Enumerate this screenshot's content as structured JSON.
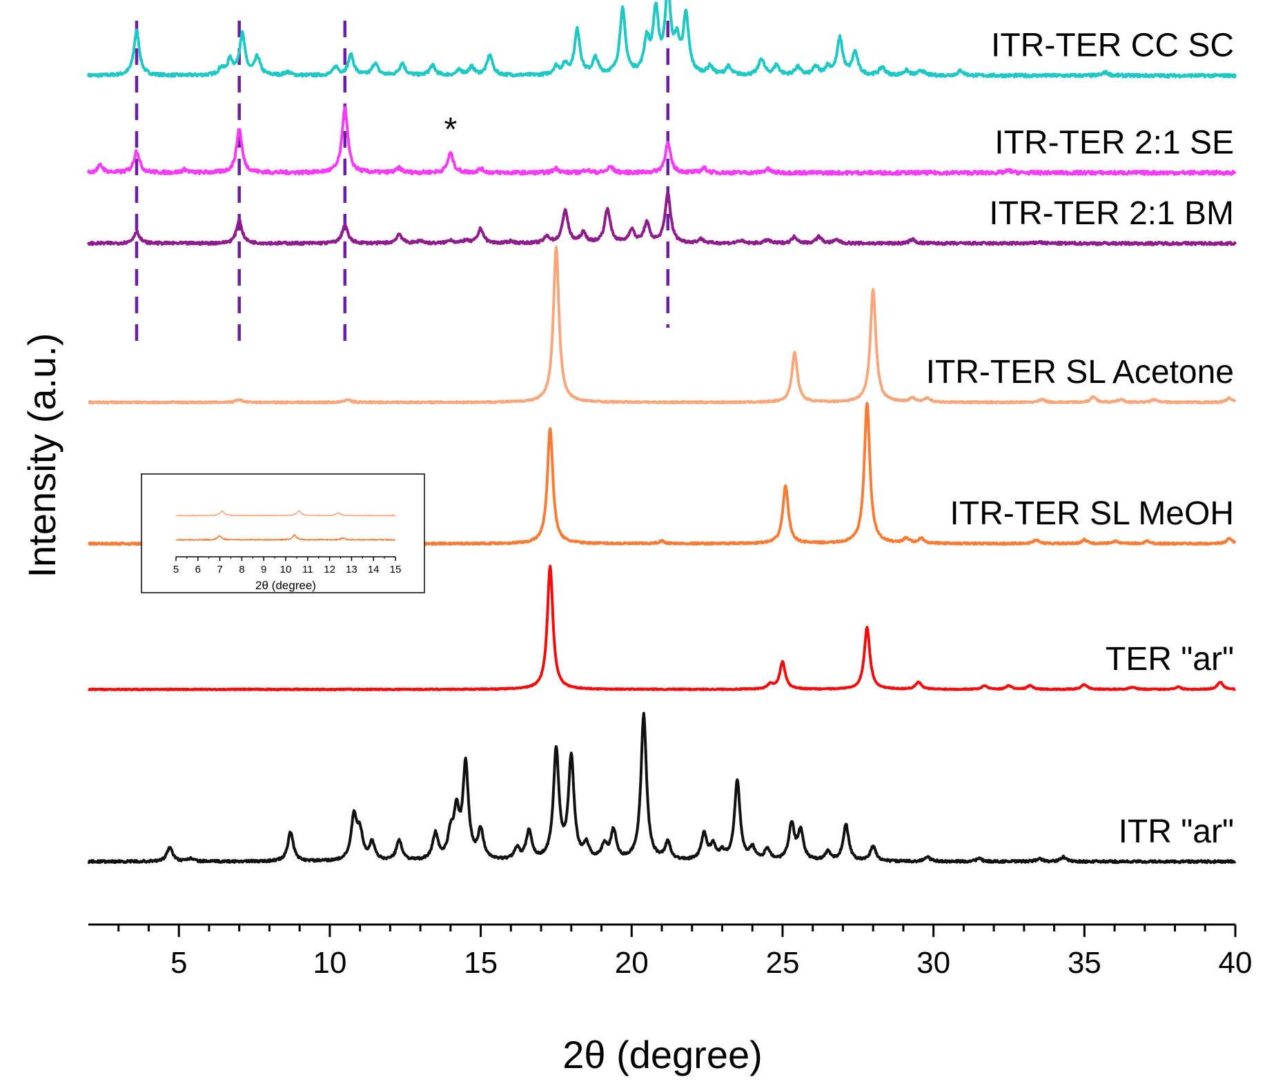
{
  "chart_data": {
    "type": "line",
    "title": "",
    "xlabel": "2θ (degree)",
    "ylabel": "Intensity (a.u.)",
    "xlim": [
      2,
      40
    ],
    "xticks": [
      5,
      10,
      15,
      20,
      25,
      30,
      35,
      40
    ],
    "ylim": [
      0,
      1
    ],
    "grid": false,
    "legend": "inline-right",
    "reference_lines": [
      3.6,
      7.0,
      10.5,
      21.2
    ],
    "annotations": [
      {
        "text": "*",
        "x": 14.0,
        "series": "ITR-TER 2:1 SE"
      }
    ],
    "series": [
      {
        "name": "ITR-TER CC SC",
        "color": "#1fc8c4",
        "baseline": 0.93,
        "scale": 0.092,
        "noise": 0.0035,
        "lw": 4,
        "peaks": [
          [
            3.6,
            0.55
          ],
          [
            6.4,
            0.08
          ],
          [
            6.7,
            0.18
          ],
          [
            7.1,
            0.5
          ],
          [
            7.6,
            0.22
          ],
          [
            8.6,
            0.04
          ],
          [
            10.2,
            0.1
          ],
          [
            10.7,
            0.25
          ],
          [
            11.5,
            0.15
          ],
          [
            12.4,
            0.15
          ],
          [
            13.4,
            0.12
          ],
          [
            14.3,
            0.06
          ],
          [
            14.7,
            0.1
          ],
          [
            15.3,
            0.25
          ],
          [
            17.5,
            0.1
          ],
          [
            17.8,
            0.12
          ],
          [
            18.2,
            0.55
          ],
          [
            18.8,
            0.2
          ],
          [
            19.7,
            0.8
          ],
          [
            20.5,
            0.4
          ],
          [
            20.8,
            0.75
          ],
          [
            21.2,
            1.0
          ],
          [
            21.5,
            0.35
          ],
          [
            21.8,
            0.7
          ],
          [
            22.6,
            0.1
          ],
          [
            23.2,
            0.1
          ],
          [
            24.3,
            0.2
          ],
          [
            24.8,
            0.12
          ],
          [
            25.5,
            0.1
          ],
          [
            26.1,
            0.1
          ],
          [
            26.5,
            0.1
          ],
          [
            26.9,
            0.45
          ],
          [
            27.4,
            0.28
          ],
          [
            28.3,
            0.1
          ],
          [
            29.1,
            0.06
          ],
          [
            29.6,
            0.06
          ],
          [
            30.9,
            0.06
          ],
          [
            35.7,
            0.04
          ]
        ]
      },
      {
        "name": "ITR-TER 2:1 SE",
        "color": "#f43cf4",
        "baseline": 0.82,
        "scale": 0.083,
        "noise": 0.004,
        "lw": 4,
        "peaks": [
          [
            2.4,
            0.1
          ],
          [
            3.6,
            0.3
          ],
          [
            5.2,
            0.04
          ],
          [
            7.0,
            0.6
          ],
          [
            10.5,
            0.9
          ],
          [
            12.3,
            0.06
          ],
          [
            14.0,
            0.27
          ],
          [
            15.0,
            0.05
          ],
          [
            17.5,
            0.06
          ],
          [
            18.5,
            0.04
          ],
          [
            19.3,
            0.08
          ],
          [
            21.2,
            0.4
          ],
          [
            22.4,
            0.06
          ],
          [
            24.5,
            0.05
          ],
          [
            32.5,
            0.03
          ]
        ]
      },
      {
        "name": "ITR-TER 2:1 BM",
        "color": "#8e1c8c",
        "baseline": 0.74,
        "scale": 0.075,
        "noise": 0.003,
        "lw": 4,
        "peaks": [
          [
            3.6,
            0.18
          ],
          [
            7.0,
            0.35
          ],
          [
            10.5,
            0.28
          ],
          [
            12.3,
            0.14
          ],
          [
            13.0,
            0.04
          ],
          [
            14.0,
            0.05
          ],
          [
            14.5,
            0.04
          ],
          [
            15.0,
            0.22
          ],
          [
            16.0,
            0.03
          ],
          [
            17.2,
            0.1
          ],
          [
            17.8,
            0.5
          ],
          [
            18.4,
            0.15
          ],
          [
            19.2,
            0.52
          ],
          [
            20.0,
            0.2
          ],
          [
            20.5,
            0.3
          ],
          [
            21.2,
            0.75
          ],
          [
            22.3,
            0.06
          ],
          [
            23.6,
            0.04
          ],
          [
            24.5,
            0.05
          ],
          [
            25.4,
            0.1
          ],
          [
            26.2,
            0.1
          ],
          [
            26.8,
            0.05
          ],
          [
            29.3,
            0.06
          ],
          [
            33.5,
            0.02
          ]
        ]
      },
      {
        "name": "ITR-TER SL Acetone",
        "color": "#f8a77c",
        "baseline": 0.56,
        "scale": 0.16,
        "noise": 0.0018,
        "lw": 4,
        "peaks": [
          [
            7.0,
            0.02
          ],
          [
            10.6,
            0.02
          ],
          [
            17.5,
            1.1
          ],
          [
            25.4,
            0.35
          ],
          [
            28.0,
            0.8
          ],
          [
            29.3,
            0.03
          ],
          [
            29.8,
            0.03
          ],
          [
            33.6,
            0.02
          ],
          [
            35.3,
            0.04
          ],
          [
            36.2,
            0.02
          ],
          [
            37.3,
            0.02
          ],
          [
            39.8,
            0.03
          ]
        ]
      },
      {
        "name": "ITR-TER SL MeOH",
        "color": "#f87c36",
        "baseline": 0.4,
        "scale": 0.145,
        "noise": 0.002,
        "lw": 4,
        "peaks": [
          [
            7.0,
            0.02
          ],
          [
            10.5,
            0.02
          ],
          [
            17.3,
            0.9
          ],
          [
            21.0,
            0.02
          ],
          [
            25.1,
            0.45
          ],
          [
            27.8,
            1.1
          ],
          [
            29.1,
            0.04
          ],
          [
            29.6,
            0.04
          ],
          [
            33.4,
            0.03
          ],
          [
            35.0,
            0.03
          ],
          [
            36.0,
            0.02
          ],
          [
            37.1,
            0.02
          ],
          [
            39.8,
            0.04
          ]
        ]
      },
      {
        "name": "TER \"ar\"",
        "color": "#f40c0c",
        "baseline": 0.235,
        "scale": 0.14,
        "noise": 0.0012,
        "lw": 4,
        "peaks": [
          [
            17.3,
            1.0
          ],
          [
            24.6,
            0.04
          ],
          [
            25.0,
            0.22
          ],
          [
            27.8,
            0.5
          ],
          [
            29.5,
            0.06
          ],
          [
            31.7,
            0.03
          ],
          [
            32.5,
            0.03
          ],
          [
            33.2,
            0.03
          ],
          [
            35.0,
            0.04
          ],
          [
            36.6,
            0.02
          ],
          [
            38.1,
            0.02
          ],
          [
            39.5,
            0.06
          ]
        ]
      },
      {
        "name": "ITR \"ar\"",
        "color": "#111111",
        "baseline": 0.04,
        "scale": 0.165,
        "noise": 0.0025,
        "lw": 4,
        "peaks": [
          [
            4.7,
            0.1
          ],
          [
            5.4,
            0.02
          ],
          [
            8.7,
            0.2
          ],
          [
            10.8,
            0.3
          ],
          [
            11.0,
            0.18
          ],
          [
            11.4,
            0.12
          ],
          [
            12.3,
            0.14
          ],
          [
            13.5,
            0.18
          ],
          [
            14.0,
            0.16
          ],
          [
            14.2,
            0.3
          ],
          [
            14.5,
            0.65
          ],
          [
            15.0,
            0.2
          ],
          [
            16.2,
            0.08
          ],
          [
            16.6,
            0.2
          ],
          [
            17.5,
            0.75
          ],
          [
            18.0,
            0.7
          ],
          [
            18.5,
            0.1
          ],
          [
            19.1,
            0.1
          ],
          [
            19.4,
            0.2
          ],
          [
            20.4,
            1.0
          ],
          [
            21.2,
            0.12
          ],
          [
            22.4,
            0.18
          ],
          [
            22.7,
            0.1
          ],
          [
            23.0,
            0.05
          ],
          [
            23.5,
            0.55
          ],
          [
            24.0,
            0.08
          ],
          [
            24.5,
            0.08
          ],
          [
            25.3,
            0.25
          ],
          [
            25.6,
            0.2
          ],
          [
            26.5,
            0.06
          ],
          [
            27.1,
            0.25
          ],
          [
            28.0,
            0.1
          ],
          [
            29.8,
            0.03
          ],
          [
            31.5,
            0.02
          ],
          [
            33.5,
            0.02
          ],
          [
            34.3,
            0.03
          ]
        ]
      }
    ],
    "inset": {
      "xlabel": "2θ (degree)",
      "xlim": [
        5,
        15
      ],
      "xticks": [
        5,
        6,
        7,
        8,
        9,
        10,
        11,
        12,
        13,
        14,
        15
      ],
      "series": [
        {
          "name": "ITR-TER SL Acetone",
          "color": "#f8a77c",
          "baseline": 0.6,
          "scale": 0.22,
          "noise": 0.012,
          "peaks": [
            [
              7.1,
              0.35
            ],
            [
              10.6,
              0.35
            ],
            [
              12.4,
              0.2
            ]
          ]
        },
        {
          "name": "ITR-TER SL MeOH",
          "color": "#f87c36",
          "baseline": 0.2,
          "scale": 0.22,
          "noise": 0.02,
          "peaks": [
            [
              7.0,
              0.3
            ],
            [
              10.4,
              0.35
            ],
            [
              12.6,
              0.12
            ]
          ]
        }
      ]
    }
  }
}
